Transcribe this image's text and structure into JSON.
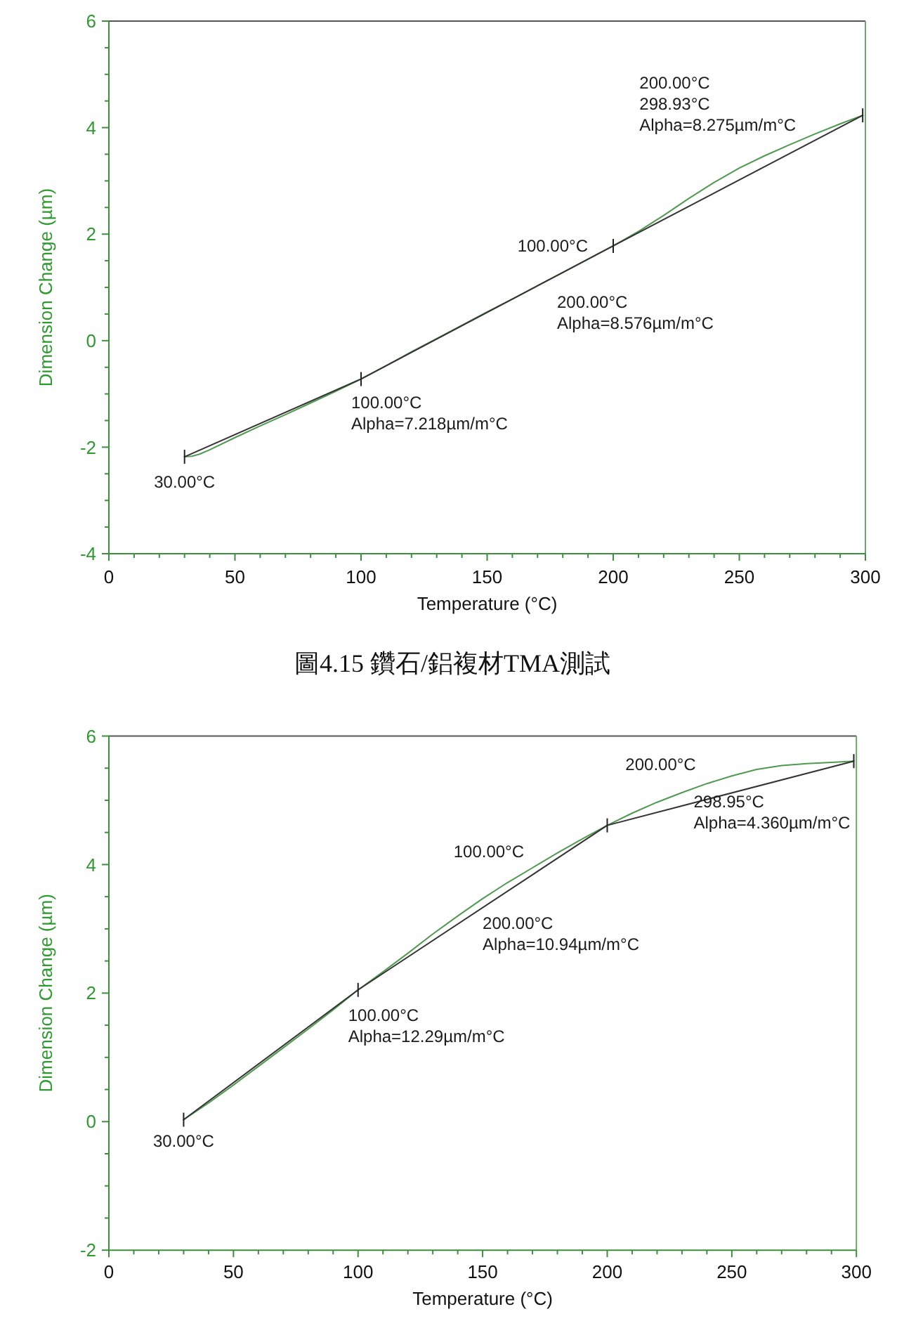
{
  "chart_data": [
    {
      "type": "line",
      "xlabel": "Temperature (°C)",
      "ylabel": "Dimension Change (µm)",
      "xlim": [
        0,
        300
      ],
      "ylim": [
        -4,
        6
      ],
      "xticks": [
        0,
        {
          "value": 10,
          "label": null
        },
        {
          "value": 20,
          "label": null
        },
        {
          "value": 30,
          "label": null
        },
        {
          "value": 40,
          "label": null
        },
        50,
        {
          "value": 60,
          "label": null
        },
        {
          "value": 70,
          "label": null
        },
        {
          "value": 80,
          "label": null
        },
        {
          "value": 90,
          "label": null
        },
        100,
        {
          "value": 110,
          "label": null
        },
        {
          "value": 120,
          "label": null
        },
        {
          "value": 130,
          "label": null
        },
        {
          "value": 140,
          "label": null
        },
        150,
        {
          "value": 160,
          "label": null
        },
        {
          "value": 170,
          "label": null
        },
        {
          "value": 180,
          "label": null
        },
        {
          "value": 190,
          "label": null
        },
        200,
        {
          "value": 210,
          "label": null
        },
        {
          "value": 220,
          "label": null
        },
        {
          "value": 230,
          "label": null
        },
        {
          "value": 240,
          "label": null
        },
        250,
        {
          "value": 260,
          "label": null
        },
        {
          "value": 270,
          "label": null
        },
        {
          "value": 280,
          "label": null
        },
        {
          "value": 290,
          "label": null
        },
        300
      ],
      "yticks": [
        -4,
        {
          "value": -3.5,
          "label": null
        },
        {
          "value": -3,
          "label": null
        },
        {
          "value": -2.5,
          "label": null
        },
        -2,
        {
          "value": -1.5,
          "label": null
        },
        {
          "value": -1,
          "label": null
        },
        {
          "value": -0.5,
          "label": null
        },
        0,
        {
          "value": 0.5,
          "label": null
        },
        {
          "value": 1,
          "label": null
        },
        {
          "value": 1.5,
          "label": null
        },
        2,
        {
          "value": 2.5,
          "label": null
        },
        {
          "value": 3,
          "label": null
        },
        {
          "value": 3.5,
          "label": null
        },
        4,
        {
          "value": 4.5,
          "label": null
        },
        {
          "value": 5,
          "label": null
        },
        {
          "value": 5.5,
          "label": null
        },
        6
      ],
      "series": [
        {
          "color": "#4f9a4f",
          "x": [
            30,
            33,
            36,
            40,
            50,
            60,
            70,
            80,
            90,
            100,
            110,
            120,
            130,
            140,
            150,
            160,
            170,
            180,
            190,
            200,
            210,
            220,
            230,
            240,
            250,
            260,
            270,
            280,
            290,
            298.93
          ],
          "values": [
            -2.18,
            -2.17,
            -2.13,
            -2.05,
            -1.82,
            -1.6,
            -1.39,
            -1.17,
            -0.95,
            -0.72,
            -0.47,
            -0.21,
            0.04,
            0.29,
            0.54,
            0.78,
            1.03,
            1.28,
            1.53,
            1.78,
            2.05,
            2.35,
            2.67,
            2.97,
            3.24,
            3.47,
            3.68,
            3.88,
            4.07,
            4.23
          ]
        },
        {
          "color": "#333333",
          "x": [
            30,
            100,
            200,
            298.93
          ],
          "values": [
            -2.18,
            -0.72,
            1.78,
            4.23
          ]
        }
      ],
      "annotations": [
        {
          "text": "30.00°C",
          "x": 30,
          "y": -2.18
        },
        {
          "text": "100.00°C\nAlpha=7.218µm/m°C",
          "x": 100,
          "y": -0.72
        },
        {
          "text": "100.00°C",
          "x": 200,
          "y": 1.78
        },
        {
          "text": "200.00°C\nAlpha=8.576µm/m°C",
          "x": 200,
          "y": 1.78
        },
        {
          "text": "200.00°C\n298.93°C\nAlpha=8.275µm/m°C",
          "x": 270,
          "y": 3.68
        },
        "圖4.15 鑽石/鋁複材TMA測試"
      ]
    },
    {
      "type": "line",
      "xlabel": "Temperature (°C)",
      "ylabel": "Dimension Change (µm)",
      "xlim": [
        0,
        300
      ],
      "ylim": [
        -2,
        6
      ],
      "xticks": [
        0,
        {
          "value": 10,
          "label": null
        },
        {
          "value": 20,
          "label": null
        },
        {
          "value": 30,
          "label": null
        },
        {
          "value": 40,
          "label": null
        },
        50,
        {
          "value": 60,
          "label": null
        },
        {
          "value": 70,
          "label": null
        },
        {
          "value": 80,
          "label": null
        },
        {
          "value": 90,
          "label": null
        },
        100,
        {
          "value": 110,
          "label": null
        },
        {
          "value": 120,
          "label": null
        },
        {
          "value": 130,
          "label": null
        },
        {
          "value": 140,
          "label": null
        },
        150,
        {
          "value": 160,
          "label": null
        },
        {
          "value": 170,
          "label": null
        },
        {
          "value": 180,
          "label": null
        },
        {
          "value": 190,
          "label": null
        },
        200,
        {
          "value": 210,
          "label": null
        },
        {
          "value": 220,
          "label": null
        },
        {
          "value": 230,
          "label": null
        },
        {
          "value": 240,
          "label": null
        },
        250,
        {
          "value": 260,
          "label": null
        },
        {
          "value": 270,
          "label": null
        },
        {
          "value": 280,
          "label": null
        },
        {
          "value": 290,
          "label": null
        },
        300
      ],
      "yticks": [
        -2,
        {
          "value": -1.5,
          "label": null
        },
        {
          "value": -1,
          "label": null
        },
        {
          "value": -0.5,
          "label": null
        },
        0,
        {
          "value": 0.5,
          "label": null
        },
        {
          "value": 1,
          "label": null
        },
        {
          "value": 1.5,
          "label": null
        },
        2,
        {
          "value": 2.5,
          "label": null
        },
        {
          "value": 3,
          "label": null
        },
        {
          "value": 3.5,
          "label": null
        },
        4,
        {
          "value": 4.5,
          "label": null
        },
        {
          "value": 5,
          "label": null
        },
        {
          "value": 5.5,
          "label": null
        },
        6
      ],
      "series": [
        {
          "color": "#4f9a4f",
          "x": [
            30,
            40,
            50,
            60,
            70,
            80,
            90,
            100,
            110,
            120,
            130,
            140,
            150,
            160,
            170,
            180,
            190,
            200,
            210,
            220,
            230,
            240,
            250,
            260,
            270,
            280,
            290,
            298.95
          ],
          "values": [
            0.03,
            0.29,
            0.57,
            0.86,
            1.15,
            1.44,
            1.74,
            2.05,
            2.33,
            2.62,
            2.92,
            3.2,
            3.47,
            3.72,
            3.95,
            4.18,
            4.4,
            4.61,
            4.8,
            4.97,
            5.12,
            5.26,
            5.38,
            5.48,
            5.54,
            5.57,
            5.59,
            5.61
          ]
        },
        {
          "color": "#333333",
          "x": [
            30,
            100,
            200,
            298.95
          ],
          "values": [
            0.03,
            2.05,
            4.61,
            5.61
          ]
        }
      ],
      "annotations": [
        {
          "text": "30.00°C",
          "x": 30,
          "y": 0.03
        },
        {
          "text": "100.00°C\nAlpha=12.29µm/m°C",
          "x": 100,
          "y": 2.05
        },
        {
          "text": "100.00°C",
          "x": 170,
          "y": 3.95
        },
        {
          "text": "200.00°C\nAlpha=10.94µm/m°C",
          "x": 150,
          "y": 3.33
        },
        {
          "text": "200.00°C",
          "x": 240,
          "y": 5.26
        },
        {
          "text": "298.95°C\nAlpha=4.360µm/m°C",
          "x": 298.95,
          "y": 5.61
        }
      ]
    }
  ]
}
